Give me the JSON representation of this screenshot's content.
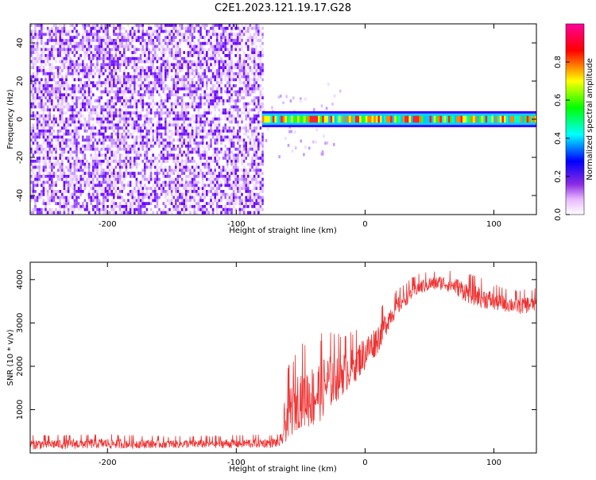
{
  "title": "C2E1.2023.121.19.17.G28",
  "chart_data": [
    {
      "type": "heatmap",
      "xlabel": "Height of straight line (km)",
      "ylabel": "Frequency (Hz)",
      "xlim": [
        -260,
        133
      ],
      "ylim": [
        -50,
        50
      ],
      "xticks": [
        -200,
        -100,
        0,
        100
      ],
      "yticks": [
        -40,
        -20,
        0,
        20,
        40
      ],
      "grid": false,
      "colorbar": {
        "label": "Normalized spectral amplitude",
        "range": [
          0,
          1
        ],
        "ticks": [
          "0.0",
          "0.2",
          "0.4",
          "0.6",
          "0.8"
        ],
        "colors": [
          "#ffffff",
          "#8a2be2",
          "#0000ff",
          "#00ffff",
          "#00ff00",
          "#ffff00",
          "#ff0000",
          "#ff00aa"
        ]
      },
      "features": [
        {
          "region": "noise",
          "x_range": [
            -260,
            -80
          ],
          "freq_range": [
            -50,
            50
          ],
          "amplitude": 0.2,
          "color": "#7b22ff"
        },
        {
          "region": "signal-band",
          "x_range": [
            -80,
            133
          ],
          "freq_center": 0,
          "freq_halfwidth": 3,
          "peak_amplitude": 0.9
        }
      ]
    },
    {
      "type": "line",
      "xlabel": "Height of straight line (km)",
      "ylabel": "SNR (10 * v/v)",
      "xlim": [
        -260,
        133
      ],
      "ylim": [
        0,
        4400
      ],
      "xticks": [
        -200,
        -100,
        0,
        100
      ],
      "yticks": [
        1000,
        2000,
        3000,
        4000
      ],
      "grid": false,
      "series": [
        {
          "color": "#ee3333",
          "x": [
            -260,
            -200,
            -150,
            -100,
            -80,
            -65,
            -60,
            -50,
            -40,
            -30,
            -20,
            -10,
            0,
            10,
            20,
            30,
            40,
            50,
            60,
            70,
            80,
            90,
            100,
            110,
            120,
            133
          ],
          "y": [
            200,
            220,
            210,
            220,
            230,
            240,
            900,
            1300,
            1300,
            1600,
            1800,
            2000,
            2300,
            2650,
            3200,
            3550,
            3800,
            3900,
            3930,
            3850,
            3700,
            3600,
            3500,
            3450,
            3400,
            3450
          ],
          "noise": [
            120,
            120,
            100,
            110,
            110,
            110,
            600,
            700,
            750,
            700,
            550,
            450,
            400,
            350,
            250,
            200,
            180,
            170,
            170,
            200,
            250,
            250,
            220,
            200,
            200,
            200
          ]
        }
      ]
    }
  ]
}
